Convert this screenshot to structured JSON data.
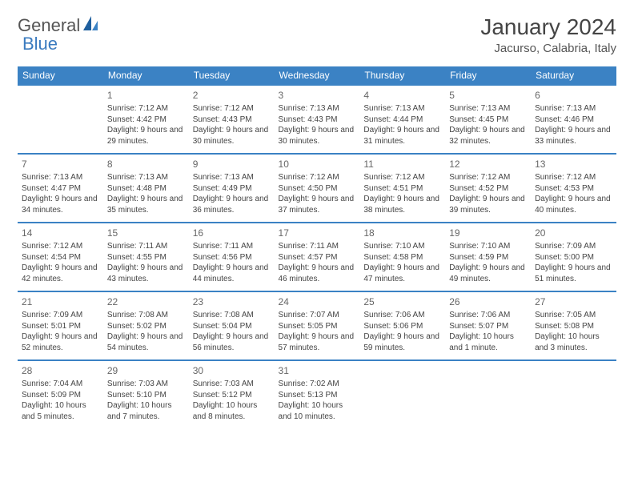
{
  "logo": {
    "text1": "General",
    "text2": "Blue"
  },
  "title": "January 2024",
  "location": "Jacurso, Calabria, Italy",
  "colors": {
    "header_bg": "#3b82c4",
    "header_text": "#ffffff",
    "body_text": "#444444",
    "logo_gray": "#555555",
    "logo_blue": "#3b7bbf"
  },
  "days_of_week": [
    "Sunday",
    "Monday",
    "Tuesday",
    "Wednesday",
    "Thursday",
    "Friday",
    "Saturday"
  ],
  "weeks": [
    [
      null,
      {
        "n": "1",
        "sr": "Sunrise: 7:12 AM",
        "ss": "Sunset: 4:42 PM",
        "dl": "Daylight: 9 hours and 29 minutes."
      },
      {
        "n": "2",
        "sr": "Sunrise: 7:12 AM",
        "ss": "Sunset: 4:43 PM",
        "dl": "Daylight: 9 hours and 30 minutes."
      },
      {
        "n": "3",
        "sr": "Sunrise: 7:13 AM",
        "ss": "Sunset: 4:43 PM",
        "dl": "Daylight: 9 hours and 30 minutes."
      },
      {
        "n": "4",
        "sr": "Sunrise: 7:13 AM",
        "ss": "Sunset: 4:44 PM",
        "dl": "Daylight: 9 hours and 31 minutes."
      },
      {
        "n": "5",
        "sr": "Sunrise: 7:13 AM",
        "ss": "Sunset: 4:45 PM",
        "dl": "Daylight: 9 hours and 32 minutes."
      },
      {
        "n": "6",
        "sr": "Sunrise: 7:13 AM",
        "ss": "Sunset: 4:46 PM",
        "dl": "Daylight: 9 hours and 33 minutes."
      }
    ],
    [
      {
        "n": "7",
        "sr": "Sunrise: 7:13 AM",
        "ss": "Sunset: 4:47 PM",
        "dl": "Daylight: 9 hours and 34 minutes."
      },
      {
        "n": "8",
        "sr": "Sunrise: 7:13 AM",
        "ss": "Sunset: 4:48 PM",
        "dl": "Daylight: 9 hours and 35 minutes."
      },
      {
        "n": "9",
        "sr": "Sunrise: 7:13 AM",
        "ss": "Sunset: 4:49 PM",
        "dl": "Daylight: 9 hours and 36 minutes."
      },
      {
        "n": "10",
        "sr": "Sunrise: 7:12 AM",
        "ss": "Sunset: 4:50 PM",
        "dl": "Daylight: 9 hours and 37 minutes."
      },
      {
        "n": "11",
        "sr": "Sunrise: 7:12 AM",
        "ss": "Sunset: 4:51 PM",
        "dl": "Daylight: 9 hours and 38 minutes."
      },
      {
        "n": "12",
        "sr": "Sunrise: 7:12 AM",
        "ss": "Sunset: 4:52 PM",
        "dl": "Daylight: 9 hours and 39 minutes."
      },
      {
        "n": "13",
        "sr": "Sunrise: 7:12 AM",
        "ss": "Sunset: 4:53 PM",
        "dl": "Daylight: 9 hours and 40 minutes."
      }
    ],
    [
      {
        "n": "14",
        "sr": "Sunrise: 7:12 AM",
        "ss": "Sunset: 4:54 PM",
        "dl": "Daylight: 9 hours and 42 minutes."
      },
      {
        "n": "15",
        "sr": "Sunrise: 7:11 AM",
        "ss": "Sunset: 4:55 PM",
        "dl": "Daylight: 9 hours and 43 minutes."
      },
      {
        "n": "16",
        "sr": "Sunrise: 7:11 AM",
        "ss": "Sunset: 4:56 PM",
        "dl": "Daylight: 9 hours and 44 minutes."
      },
      {
        "n": "17",
        "sr": "Sunrise: 7:11 AM",
        "ss": "Sunset: 4:57 PM",
        "dl": "Daylight: 9 hours and 46 minutes."
      },
      {
        "n": "18",
        "sr": "Sunrise: 7:10 AM",
        "ss": "Sunset: 4:58 PM",
        "dl": "Daylight: 9 hours and 47 minutes."
      },
      {
        "n": "19",
        "sr": "Sunrise: 7:10 AM",
        "ss": "Sunset: 4:59 PM",
        "dl": "Daylight: 9 hours and 49 minutes."
      },
      {
        "n": "20",
        "sr": "Sunrise: 7:09 AM",
        "ss": "Sunset: 5:00 PM",
        "dl": "Daylight: 9 hours and 51 minutes."
      }
    ],
    [
      {
        "n": "21",
        "sr": "Sunrise: 7:09 AM",
        "ss": "Sunset: 5:01 PM",
        "dl": "Daylight: 9 hours and 52 minutes."
      },
      {
        "n": "22",
        "sr": "Sunrise: 7:08 AM",
        "ss": "Sunset: 5:02 PM",
        "dl": "Daylight: 9 hours and 54 minutes."
      },
      {
        "n": "23",
        "sr": "Sunrise: 7:08 AM",
        "ss": "Sunset: 5:04 PM",
        "dl": "Daylight: 9 hours and 56 minutes."
      },
      {
        "n": "24",
        "sr": "Sunrise: 7:07 AM",
        "ss": "Sunset: 5:05 PM",
        "dl": "Daylight: 9 hours and 57 minutes."
      },
      {
        "n": "25",
        "sr": "Sunrise: 7:06 AM",
        "ss": "Sunset: 5:06 PM",
        "dl": "Daylight: 9 hours and 59 minutes."
      },
      {
        "n": "26",
        "sr": "Sunrise: 7:06 AM",
        "ss": "Sunset: 5:07 PM",
        "dl": "Daylight: 10 hours and 1 minute."
      },
      {
        "n": "27",
        "sr": "Sunrise: 7:05 AM",
        "ss": "Sunset: 5:08 PM",
        "dl": "Daylight: 10 hours and 3 minutes."
      }
    ],
    [
      {
        "n": "28",
        "sr": "Sunrise: 7:04 AM",
        "ss": "Sunset: 5:09 PM",
        "dl": "Daylight: 10 hours and 5 minutes."
      },
      {
        "n": "29",
        "sr": "Sunrise: 7:03 AM",
        "ss": "Sunset: 5:10 PM",
        "dl": "Daylight: 10 hours and 7 minutes."
      },
      {
        "n": "30",
        "sr": "Sunrise: 7:03 AM",
        "ss": "Sunset: 5:12 PM",
        "dl": "Daylight: 10 hours and 8 minutes."
      },
      {
        "n": "31",
        "sr": "Sunrise: 7:02 AM",
        "ss": "Sunset: 5:13 PM",
        "dl": "Daylight: 10 hours and 10 minutes."
      },
      null,
      null,
      null
    ]
  ]
}
